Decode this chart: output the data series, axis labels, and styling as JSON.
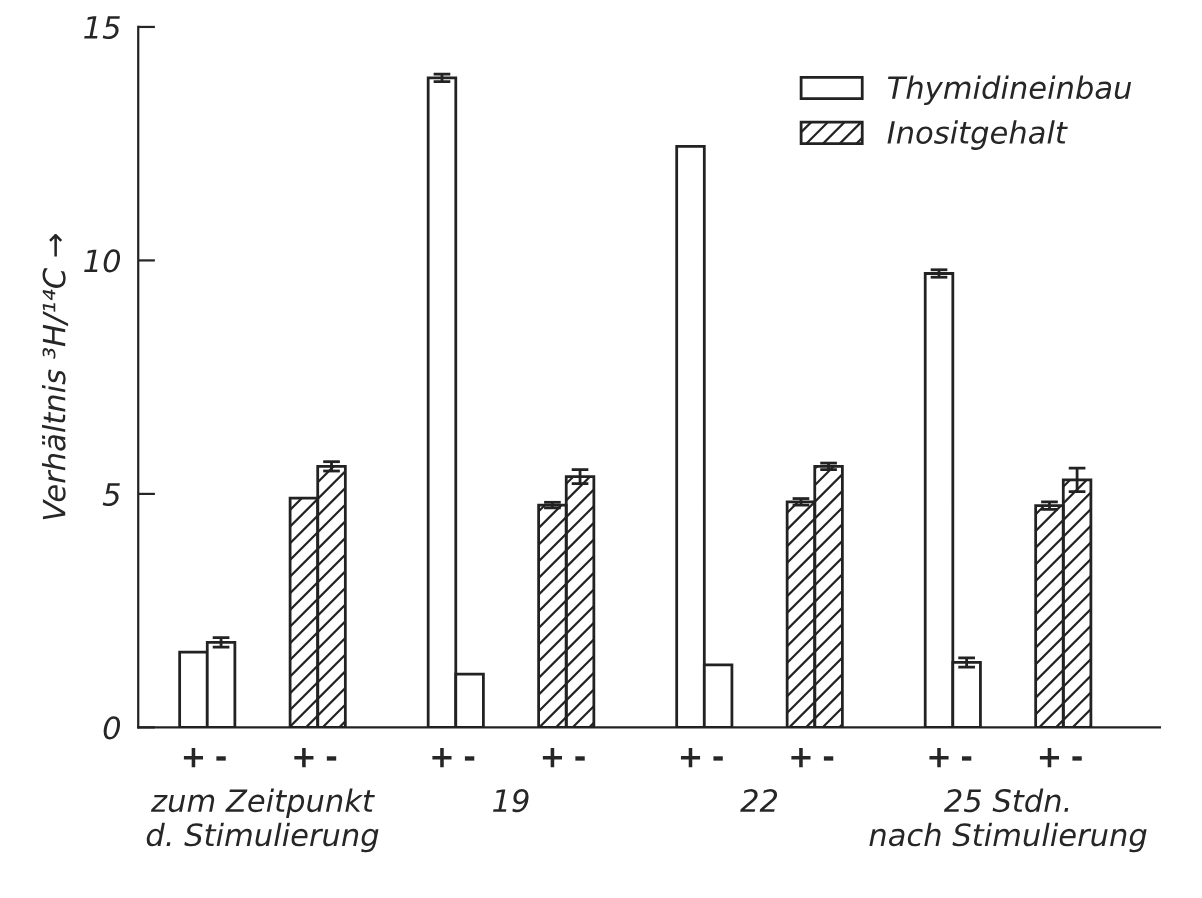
{
  "chart_data": {
    "type": "bar",
    "ylabel": "Verhältnis ³H/¹⁴C →",
    "categories": [
      "+",
      "-",
      null,
      null,
      "+",
      "-",
      null,
      null,
      null,
      "+",
      "-",
      null,
      null,
      "+",
      "-",
      null,
      null,
      null,
      "+",
      "-",
      null,
      null,
      "+",
      "-",
      null,
      null,
      null,
      "+",
      "-",
      null,
      null,
      "+",
      "-"
    ],
    "series": [
      {
        "name": "Thymidineinbau",
        "color": "#ffffff",
        "values": [
          1.61,
          1.82,
          null,
          null,
          null,
          null,
          null,
          null,
          null,
          13.91,
          1.14,
          null,
          null,
          null,
          null,
          null,
          null,
          null,
          12.44,
          1.34,
          null,
          null,
          null,
          null,
          null,
          null,
          null,
          9.72,
          1.39,
          null,
          null,
          null,
          null
        ],
        "errors": [
          null,
          0.1,
          null,
          null,
          null,
          null,
          null,
          null,
          null,
          0.08,
          null,
          null,
          null,
          null,
          null,
          null,
          null,
          null,
          null,
          null,
          null,
          null,
          null,
          null,
          null,
          null,
          null,
          0.08,
          0.1,
          null,
          null,
          null,
          null
        ]
      },
      {
        "name": "Inositgehalt",
        "color": "#222222",
        "values": [
          null,
          null,
          null,
          null,
          4.91,
          5.59,
          null,
          null,
          null,
          null,
          null,
          null,
          null,
          4.76,
          5.37,
          null,
          null,
          null,
          null,
          null,
          null,
          null,
          4.83,
          5.59,
          null,
          null,
          null,
          null,
          null,
          null,
          null,
          4.75,
          5.3
        ],
        "errors": [
          null,
          null,
          null,
          null,
          null,
          0.1,
          null,
          null,
          null,
          null,
          null,
          null,
          null,
          0.06,
          0.15,
          null,
          null,
          null,
          null,
          null,
          null,
          null,
          0.07,
          0.07,
          null,
          null,
          null,
          null,
          null,
          null,
          null,
          0.08,
          0.25
        ]
      }
    ],
    "annotations": [
      "zum Zeitpunkt\nd. Stimulierung",
      "19",
      "22",
      "25 Stdn.\nnach Stimulierung"
    ],
    "ylim": [
      0,
      15
    ],
    "yticks": [
      0,
      5,
      10,
      15
    ],
    "grid": false,
    "legend": "top right"
  }
}
